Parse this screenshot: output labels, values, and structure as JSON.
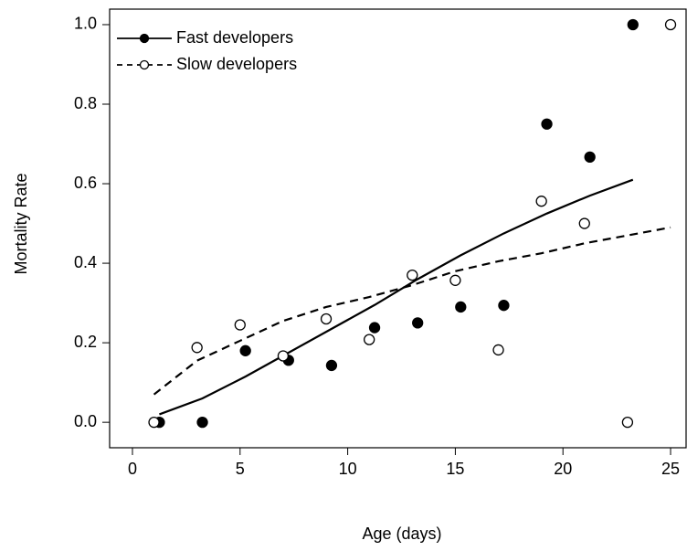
{
  "chart_data": {
    "type": "scatter",
    "xlabel": "Age (days)",
    "ylabel": "Mortality Rate",
    "xlim": [
      -1.06,
      25.72
    ],
    "ylim": [
      -0.064,
      1.039
    ],
    "xticks": [
      0,
      5,
      10,
      15,
      20,
      25
    ],
    "yticks": [
      {
        "value": 0,
        "label": "0.0"
      },
      0.2,
      0.4,
      0.6,
      0.8,
      {
        "value": 1,
        "label": "1.0"
      }
    ],
    "legend": "top-left",
    "series": [
      {
        "name": "Fast developers",
        "color": "#000000",
        "marker": "filled",
        "linestyle": "solid",
        "x": [
          1.25,
          3.25,
          5.25,
          7.25,
          9.25,
          11.25,
          13.25,
          15.25,
          17.25,
          19.25,
          21.25,
          23.25
        ],
        "values": [
          0,
          0,
          0.18,
          0.156,
          0.143,
          0.238,
          0.25,
          0.29,
          0.294,
          0.75,
          0.667,
          1.0
        ],
        "fit": {
          "x": [
            1.25,
            3.25,
            5.25,
            7.25,
            9.25,
            11.25,
            13.25,
            15.25,
            17.25,
            19.25,
            21.25,
            23.25
          ],
          "values": [
            0.02,
            0.06,
            0.115,
            0.175,
            0.235,
            0.295,
            0.36,
            0.42,
            0.475,
            0.525,
            0.57,
            0.61
          ]
        }
      },
      {
        "name": "Slow developers",
        "color": "#000000",
        "marker": "open",
        "linestyle": "dashed",
        "x": [
          1,
          3,
          5,
          7,
          9,
          11,
          13,
          15,
          17,
          19,
          21,
          23,
          25
        ],
        "values": [
          0,
          0.188,
          0.245,
          0.167,
          0.26,
          0.208,
          0.37,
          0.357,
          0.182,
          0.556,
          0.5,
          0,
          1.0
        ],
        "fit": {
          "x": [
            1,
            3,
            5,
            7,
            9,
            11,
            13,
            15,
            17,
            19,
            21,
            23,
            25
          ],
          "values": [
            0.07,
            0.155,
            0.205,
            0.255,
            0.29,
            0.315,
            0.345,
            0.38,
            0.405,
            0.425,
            0.45,
            0.47,
            0.49
          ]
        }
      }
    ]
  }
}
